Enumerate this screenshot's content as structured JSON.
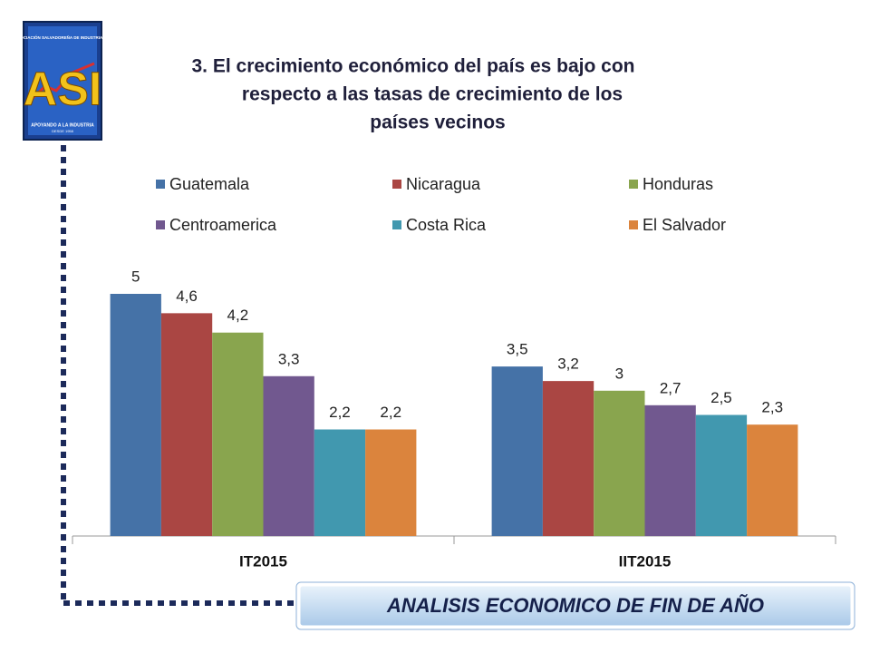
{
  "logo": {
    "org": "ASOCIACIÓN SALVADOREÑA DE INDUSTRIALES",
    "acronym": "ASI",
    "motto": "APOYANDO A LA INDUSTRIA",
    "since": "DESDE 1958"
  },
  "footer": "ANALISIS ECONOMICO DE FIN DE AÑO",
  "chart_data": {
    "type": "bar",
    "title_lines": [
      "3. El crecimiento económico del país es bajo con",
      "respecto a las tasas de crecimiento de los",
      "países vecinos"
    ],
    "categories": [
      "IT2015",
      "IIT2015"
    ],
    "legend": "top",
    "series": [
      {
        "name": "Guatemala",
        "color": "#4572a7",
        "values": [
          5,
          3.5
        ],
        "value_labels": [
          "5",
          "3,5"
        ]
      },
      {
        "name": "Nicaragua",
        "color": "#aa4643",
        "values": [
          4.6,
          3.2
        ],
        "value_labels": [
          "4,6",
          "3,2"
        ]
      },
      {
        "name": "Honduras",
        "color": "#89a54e",
        "values": [
          4.2,
          3
        ],
        "value_labels": [
          "4,2",
          "3"
        ]
      },
      {
        "name": "Centroamerica",
        "color": "#71588f",
        "values": [
          3.3,
          2.7
        ],
        "value_labels": [
          "3,3",
          "2,7"
        ]
      },
      {
        "name": "Costa Rica",
        "color": "#4198af",
        "values": [
          2.2,
          2.5
        ],
        "value_labels": [
          "2,2",
          "2,5"
        ]
      },
      {
        "name": "El Salvador",
        "color": "#db843d",
        "values": [
          2.2,
          2.3
        ],
        "value_labels": [
          "2,2",
          "2,3"
        ]
      }
    ]
  }
}
